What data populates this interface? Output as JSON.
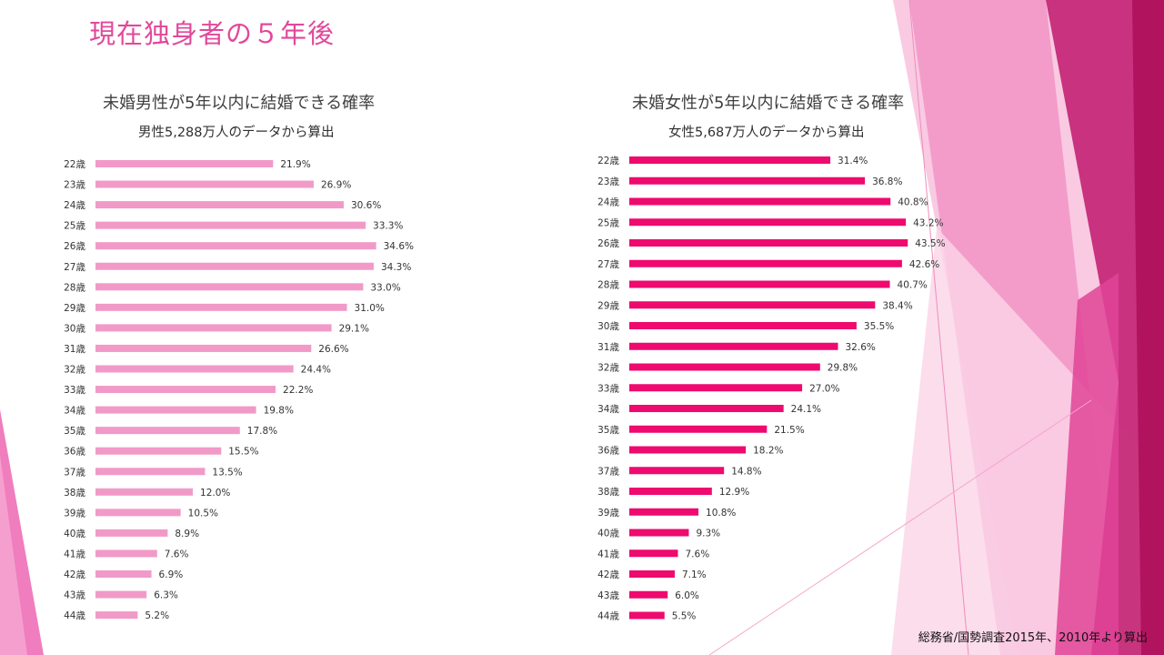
{
  "slide": {
    "title": "現在独身者の５年後",
    "source": "総務省/国勢調査2015年、2010年より算出"
  },
  "theme": {
    "male_bar_color": "#f19ac8",
    "female_bar_color": "#ee0a6e",
    "title_color": "#e2489a"
  },
  "chart_data": [
    {
      "type": "bar",
      "orientation": "horizontal",
      "title": "未婚男性が5年以内に結婚できる確率",
      "subtitle": "男性5,288万人のデータから算出",
      "categories": [
        "22歳",
        "23歳",
        "24歳",
        "25歳",
        "26歳",
        "27歳",
        "28歳",
        "29歳",
        "30歳",
        "31歳",
        "32歳",
        "33歳",
        "34歳",
        "35歳",
        "36歳",
        "37歳",
        "38歳",
        "39歳",
        "40歳",
        "41歳",
        "42歳",
        "43歳",
        "44歳"
      ],
      "values": [
        21.9,
        26.9,
        30.6,
        33.3,
        34.6,
        34.3,
        33.0,
        31.0,
        29.1,
        26.6,
        24.4,
        22.2,
        19.8,
        17.8,
        15.5,
        13.5,
        12.0,
        10.5,
        8.9,
        7.6,
        6.9,
        6.3,
        5.2
      ],
      "value_labels": [
        "21.9%",
        "26.9%",
        "30.6%",
        "33.3%",
        "34.6%",
        "34.3%",
        "33.0%",
        "31.0%",
        "29.1%",
        "26.6%",
        "24.4%",
        "22.2%",
        "19.8%",
        "17.8%",
        "15.5%",
        "13.5%",
        "12.0%",
        "10.5%",
        "8.9%",
        "7.6%",
        "6.9%",
        "6.3%",
        "5.2%"
      ],
      "xlim": [
        0,
        50
      ],
      "grid": false,
      "color": "#f19ac8"
    },
    {
      "type": "bar",
      "orientation": "horizontal",
      "title": "未婚女性が5年以内に結婚できる確率",
      "subtitle": "女性5,687万人のデータから算出",
      "categories": [
        "22歳",
        "23歳",
        "24歳",
        "25歳",
        "26歳",
        "27歳",
        "28歳",
        "29歳",
        "30歳",
        "31歳",
        "32歳",
        "33歳",
        "34歳",
        "35歳",
        "36歳",
        "37歳",
        "38歳",
        "39歳",
        "40歳",
        "41歳",
        "42歳",
        "43歳",
        "44歳"
      ],
      "values": [
        31.4,
        36.8,
        40.8,
        43.2,
        43.5,
        42.6,
        40.7,
        38.4,
        35.5,
        32.6,
        29.8,
        27.0,
        24.1,
        21.5,
        18.2,
        14.8,
        12.9,
        10.8,
        9.3,
        7.6,
        7.1,
        6.0,
        5.5
      ],
      "value_labels": [
        "31.4%",
        "36.8%",
        "40.8%",
        "43.2%",
        "43.5%",
        "42.6%",
        "40.7%",
        "38.4%",
        "35.5%",
        "32.6%",
        "29.8%",
        "27.0%",
        "24.1%",
        "21.5%",
        "18.2%",
        "14.8%",
        "12.9%",
        "10.8%",
        "9.3%",
        "7.6%",
        "7.1%",
        "6.0%",
        "5.5%"
      ],
      "xlim": [
        0,
        50
      ],
      "grid": false,
      "color": "#ee0a6e"
    }
  ]
}
